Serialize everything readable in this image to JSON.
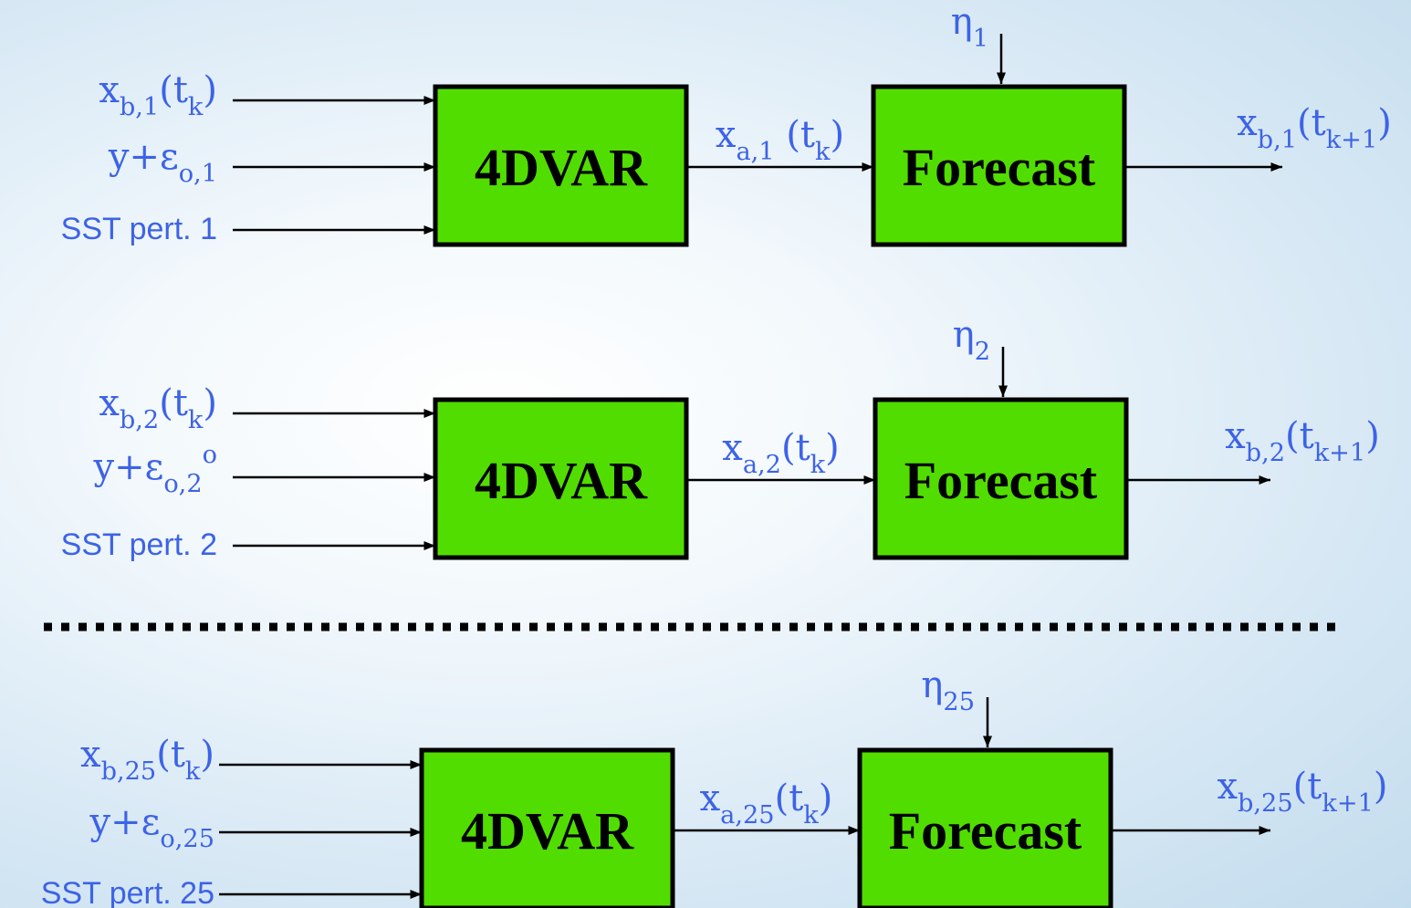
{
  "rows": [
    {
      "inputs": [
        [
          {
            "text": "x"
          },
          {
            "sub": "b,1"
          },
          {
            "text": "(t"
          },
          {
            "sub": "k"
          },
          {
            "text": ")"
          }
        ],
        [
          {
            "text": "y+ε"
          },
          {
            "sub": "o,1"
          }
        ],
        [
          {
            "text": "SST pert. 1"
          }
        ]
      ],
      "analysis": "4DVAR",
      "analysis_output": [
        {
          "text": "x"
        },
        {
          "sub": "a,1"
        },
        {
          "text": " (t"
        },
        {
          "sub": "k"
        },
        {
          "text": ")"
        }
      ],
      "noise": [
        {
          "text": "η"
        },
        {
          "sub": "1"
        }
      ],
      "model": "Forecast",
      "output": [
        {
          "text": "x"
        },
        {
          "sub": "b,1"
        },
        {
          "text": "(t"
        },
        {
          "sub": "k+1"
        },
        {
          "text": ")"
        }
      ]
    },
    {
      "inputs": [
        [
          {
            "text": "x"
          },
          {
            "sub": "b,2"
          },
          {
            "text": "(t"
          },
          {
            "sub": "k"
          },
          {
            "text": ")"
          }
        ],
        [
          {
            "text": "y+ε"
          },
          {
            "sub": "o,2"
          },
          {
            "sup": "o"
          }
        ],
        [
          {
            "text": "SST pert. 2"
          }
        ]
      ],
      "analysis": "4DVAR",
      "analysis_output": [
        {
          "text": "x"
        },
        {
          "sub": "a,2"
        },
        {
          "text": "(t"
        },
        {
          "sub": "k"
        },
        {
          "text": ")"
        }
      ],
      "noise": [
        {
          "text": "η"
        },
        {
          "sub": "2"
        }
      ],
      "model": "Forecast",
      "output": [
        {
          "text": "x"
        },
        {
          "sub": "b,2"
        },
        {
          "text": "(t"
        },
        {
          "sub": "k+1"
        },
        {
          "text": ")"
        }
      ]
    },
    {
      "inputs": [
        [
          {
            "text": "x"
          },
          {
            "sub": "b,25"
          },
          {
            "text": "(t"
          },
          {
            "sub": "k"
          },
          {
            "text": ")"
          }
        ],
        [
          {
            "text": "y+ε"
          },
          {
            "sub": "o,25"
          }
        ],
        [
          {
            "text": "SST pert. 25"
          }
        ]
      ],
      "analysis": "4DVAR",
      "analysis_output": [
        {
          "text": "x"
        },
        {
          "sub": "a,25"
        },
        {
          "text": "(t"
        },
        {
          "sub": "k"
        },
        {
          "text": ")"
        }
      ],
      "noise": [
        {
          "text": "η"
        },
        {
          "sub": "25"
        }
      ],
      "model": "Forecast",
      "output": [
        {
          "text": "x"
        },
        {
          "sub": "b,25"
        },
        {
          "text": "(t"
        },
        {
          "sub": "k+1"
        },
        {
          "text": ")"
        }
      ]
    }
  ]
}
